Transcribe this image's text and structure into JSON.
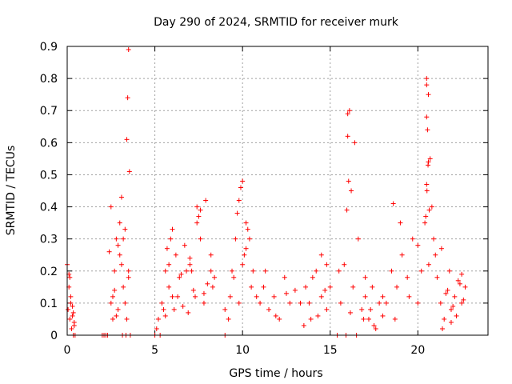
{
  "chart_data": {
    "type": "scatter",
    "title": "Day 290 of 2024, SRMTID for receiver murk",
    "xlabel": "GPS time / hours",
    "ylabel": "SRMTID / TECUs",
    "xlim": [
      0,
      24
    ],
    "ylim": [
      0,
      0.9
    ],
    "xticks": [
      0,
      5,
      10,
      15,
      20
    ],
    "yticks": [
      0,
      0.1,
      0.2,
      0.3,
      0.4,
      0.5,
      0.6,
      0.7,
      0.8,
      0.9
    ],
    "grid": true,
    "marker": "+",
    "series": [
      {
        "name": "SRMTID",
        "color": "#ff0000",
        "x": [
          0.0,
          0.05,
          0.1,
          0.15,
          0.2,
          0.25,
          0.3,
          0.35,
          0.4,
          0.45,
          0.1,
          0.2,
          0.3,
          0.4,
          0.15,
          0.35,
          2.0,
          2.1,
          2.2,
          2.3,
          2.4,
          2.5,
          2.6,
          2.7,
          2.8,
          2.9,
          3.0,
          3.1,
          3.2,
          3.3,
          3.4,
          3.5,
          3.6,
          2.5,
          2.7,
          2.9,
          3.1,
          3.3,
          3.5,
          2.6,
          2.8,
          3.0,
          3.2,
          3.4,
          3.45,
          3.5,
          3.55,
          3.35,
          3.15,
          5.0,
          5.1,
          5.2,
          5.3,
          5.4,
          5.5,
          5.6,
          5.7,
          5.8,
          5.9,
          6.0,
          6.2,
          6.4,
          6.6,
          6.8,
          7.0,
          7.2,
          7.4,
          7.6,
          7.8,
          8.0,
          8.2,
          8.4,
          5.6,
          5.8,
          6.0,
          6.3,
          6.7,
          7.1,
          7.5,
          7.9,
          8.3,
          6.1,
          6.5,
          7.0,
          7.4,
          7.8,
          8.2,
          7.6,
          7.3,
          6.9,
          9.0,
          9.2,
          9.4,
          9.6,
          9.8,
          10.0,
          10.2,
          10.4,
          10.6,
          10.8,
          11.0,
          9.5,
          9.7,
          9.9,
          10.1,
          10.3,
          10.5,
          9.8,
          10.0,
          10.2,
          11.2,
          11.5,
          11.8,
          12.1,
          12.4,
          12.7,
          13.0,
          11.3,
          11.9,
          12.5,
          9.0,
          9.3,
          13.3,
          13.6,
          13.9,
          14.2,
          14.5,
          14.8,
          15.0,
          13.5,
          14.0,
          14.5,
          14.8,
          13.8,
          14.3,
          14.7,
          15.4,
          15.6,
          15.8,
          16.0,
          16.2,
          16.4,
          16.6,
          16.8,
          17.0,
          17.2,
          17.4,
          17.6,
          17.8,
          18.0,
          15.9,
          16.0,
          16.1,
          16.05,
          15.95,
          16.15,
          16.5,
          17.0,
          17.5,
          18.0,
          15.5,
          16.3,
          16.9,
          17.3,
          18.2,
          18.5,
          18.8,
          19.1,
          19.4,
          19.7,
          20.0,
          20.2,
          20.4,
          20.5,
          20.6,
          20.7,
          20.8,
          20.9,
          21.0,
          21.1,
          20.55,
          20.5,
          20.6,
          20.52,
          20.45,
          20.65,
          20.5,
          20.58,
          20.5,
          20.62,
          18.6,
          19.0,
          19.5,
          20.0,
          18.7,
          21.3,
          21.5,
          21.7,
          21.9,
          22.1,
          22.3,
          22.5,
          22.7,
          21.4,
          21.8,
          22.2,
          22.6,
          21.6,
          22.0,
          22.4,
          21.35,
          21.9,
          22.5
        ],
        "y": [
          0.22,
          0.08,
          0.19,
          0.05,
          0.1,
          0.02,
          0.06,
          0.0,
          0.04,
          0.0,
          0.15,
          0.12,
          0.09,
          0.03,
          0.18,
          0.07,
          0.0,
          0.0,
          0.0,
          0.0,
          0.26,
          0.1,
          0.05,
          0.2,
          0.3,
          0.28,
          0.35,
          0.22,
          0.15,
          0.1,
          0.05,
          0.18,
          0.0,
          0.4,
          0.14,
          0.08,
          0.43,
          0.33,
          0.2,
          0.12,
          0.06,
          0.25,
          0.3,
          0.61,
          0.74,
          0.89,
          0.51,
          0.0,
          0.0,
          0.0,
          0.02,
          0.05,
          0.0,
          0.1,
          0.08,
          0.2,
          0.27,
          0.15,
          0.3,
          0.12,
          0.25,
          0.18,
          0.09,
          0.2,
          0.22,
          0.14,
          0.4,
          0.3,
          0.1,
          0.16,
          0.25,
          0.18,
          0.06,
          0.22,
          0.33,
          0.12,
          0.28,
          0.2,
          0.37,
          0.42,
          0.15,
          0.08,
          0.19,
          0.24,
          0.35,
          0.13,
          0.2,
          0.39,
          0.12,
          0.07,
          0.0,
          0.05,
          0.2,
          0.3,
          0.42,
          0.48,
          0.35,
          0.3,
          0.2,
          0.12,
          0.1,
          0.18,
          0.38,
          0.46,
          0.25,
          0.33,
          0.15,
          0.1,
          0.22,
          0.27,
          0.15,
          0.08,
          0.12,
          0.05,
          0.18,
          0.1,
          0.14,
          0.2,
          0.06,
          0.13,
          0.08,
          0.12,
          0.1,
          0.15,
          0.05,
          0.2,
          0.12,
          0.08,
          0.15,
          0.03,
          0.18,
          0.25,
          0.22,
          0.1,
          0.06,
          0.14,
          0.0,
          0.1,
          0.22,
          0.69,
          0.45,
          0.6,
          0.3,
          0.08,
          0.12,
          0.05,
          0.15,
          0.02,
          0.1,
          0.06,
          0.0,
          0.62,
          0.7,
          0.48,
          0.39,
          0.07,
          0.0,
          0.18,
          0.03,
          0.12,
          0.2,
          0.15,
          0.05,
          0.08,
          0.1,
          0.2,
          0.15,
          0.25,
          0.18,
          0.3,
          0.1,
          0.2,
          0.35,
          0.8,
          0.75,
          0.55,
          0.4,
          0.3,
          0.25,
          0.18,
          0.64,
          0.68,
          0.54,
          0.45,
          0.37,
          0.39,
          0.47,
          0.53,
          0.78,
          0.22,
          0.41,
          0.35,
          0.12,
          0.28,
          0.05,
          0.1,
          0.05,
          0.14,
          0.08,
          0.12,
          0.17,
          0.1,
          0.15,
          0.02,
          0.2,
          0.06,
          0.11,
          0.13,
          0.09,
          0.16,
          0.27,
          0.04,
          0.19
        ]
      }
    ]
  }
}
